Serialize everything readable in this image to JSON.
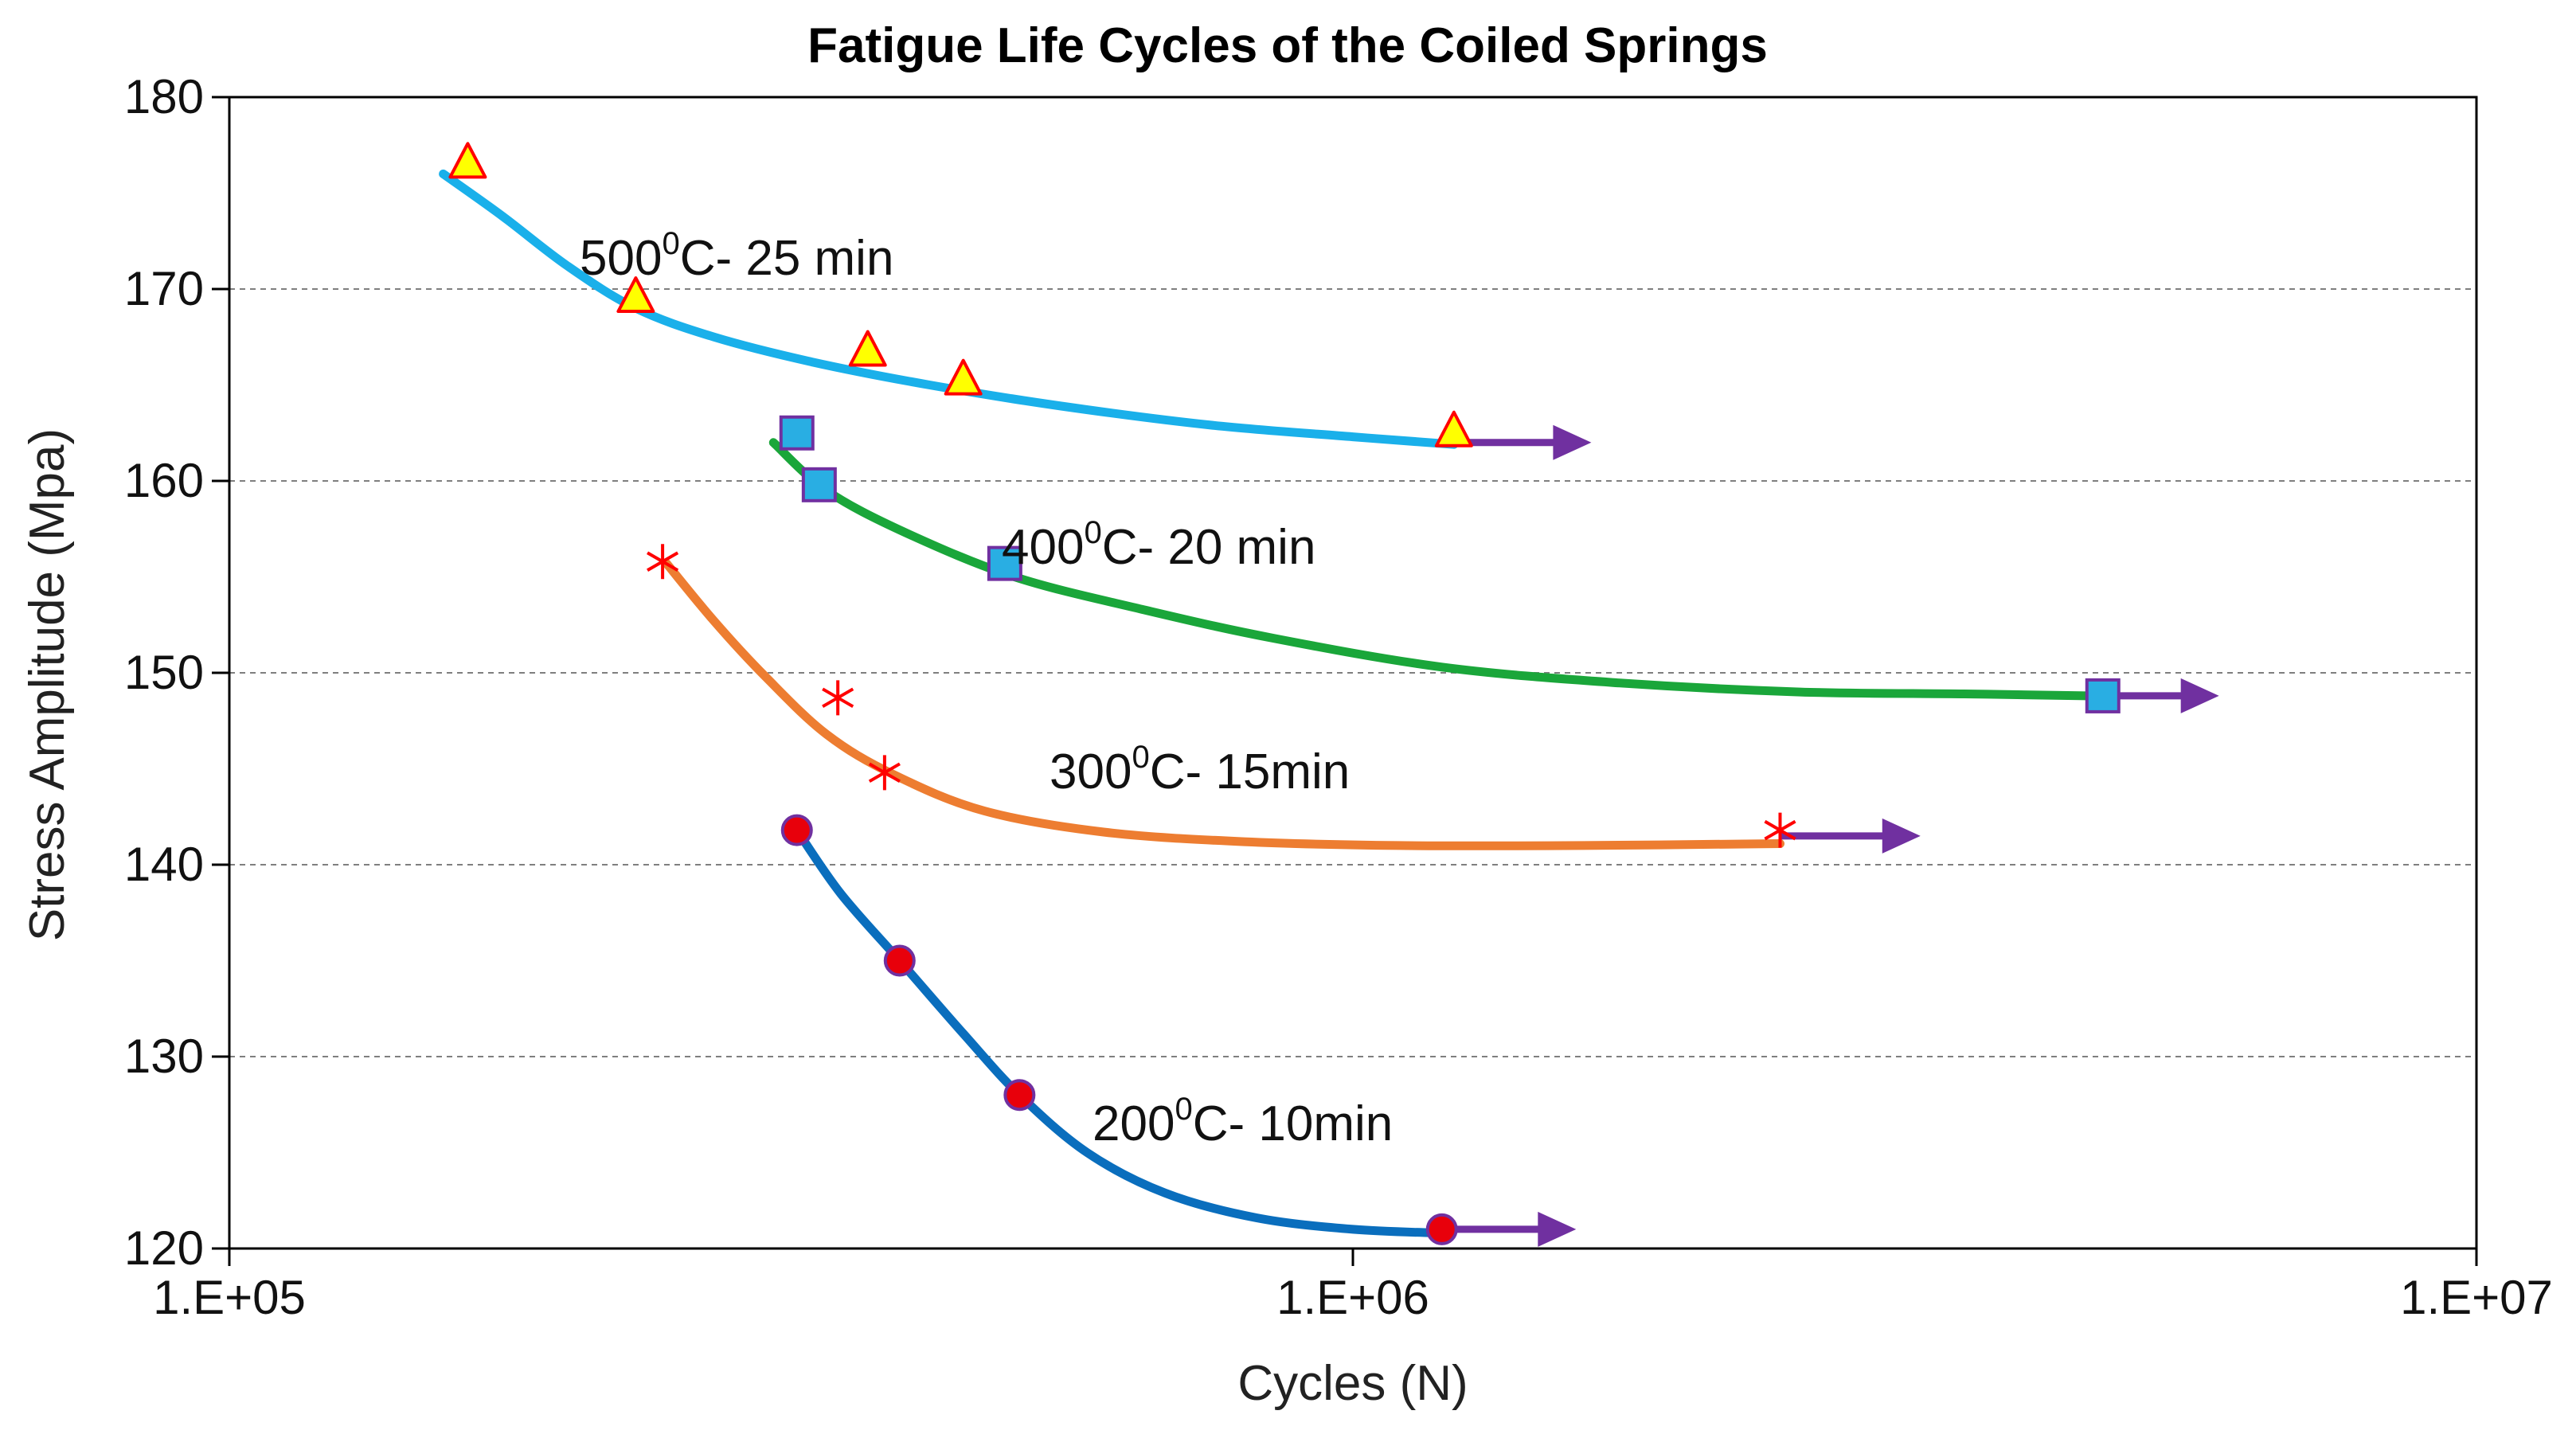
{
  "chart_data": {
    "type": "scatter",
    "title": "Fatigue Life Cycles of the Coiled Springs",
    "xlabel": "Cycles (N)",
    "ylabel": "Stress Amplitude (Mpa)",
    "xscale": "log",
    "xlim": [
      100000,
      10000000
    ],
    "ylim": [
      120,
      180
    ],
    "xticks": [
      100000,
      1000000,
      10000000
    ],
    "xtick_labels": [
      "1.E+05",
      "1.E+06",
      "1.E+07"
    ],
    "yticks": [
      120,
      130,
      140,
      150,
      160,
      170,
      180
    ],
    "ytick_labels": [
      "120",
      "130",
      "140",
      "150",
      "160",
      "170",
      "180"
    ],
    "grid": "horizontal dashed",
    "colors": {
      "title": "#ff0000",
      "runout_arrow": "#7030a0",
      "gridline": "#7f7f7f",
      "axis": "#000000"
    },
    "series": [
      {
        "name": "500°C- 25 min",
        "label_main": "500",
        "label_sup": "0",
        "label_rest": "C- 25 min",
        "marker": "triangle",
        "marker_fill": "#ffff00",
        "marker_edge": "#ff0000",
        "line_color": "#1ab0ea",
        "x": [
          163000,
          230000,
          370000,
          450000,
          1230000
        ],
        "y": [
          176.5,
          169.5,
          166.7,
          165.2,
          162.5
        ],
        "fit_x": [
          155000,
          175000,
          200000,
          230000,
          270000,
          330000,
          420000,
          550000,
          750000,
          1000000,
          1230000
        ],
        "fit_y": [
          176.0,
          173.8,
          171.2,
          169.0,
          167.5,
          166.2,
          165.0,
          163.9,
          162.9,
          162.3,
          161.9
        ],
        "runout_x": 1230000,
        "runout_y": 162.0,
        "runout_end_x": 1630000
      },
      {
        "name": "400°C- 20 min",
        "label_main": "400",
        "label_sup": "0",
        "label_rest": "C- 20 min",
        "marker": "square",
        "marker_fill": "#29aee3",
        "marker_edge": "#7030a0",
        "line_color": "#1aa63a",
        "x": [
          320000,
          335000,
          490000,
          4650000
        ],
        "y": [
          162.5,
          159.8,
          155.7,
          148.8
        ],
        "fit_x": [
          305000,
          340000,
          400000,
          500000,
          650000,
          850000,
          1200000,
          1700000,
          2500000,
          3500000,
          4500000
        ],
        "fit_y": [
          162.0,
          159.5,
          157.3,
          155.0,
          153.3,
          151.8,
          150.3,
          149.5,
          149.0,
          148.9,
          148.8
        ],
        "runout_x": 4650000,
        "runout_y": 148.8,
        "runout_end_x": 5900000
      },
      {
        "name": "300°C- 15min",
        "label_main": "300",
        "label_sup": "0",
        "label_rest": "C- 15min",
        "marker": "asterisk",
        "marker_fill": "#ff0000",
        "marker_edge": "#ff0000",
        "line_color": "#ed7d31",
        "x": [
          243000,
          348000,
          383000,
          2400000
        ],
        "y": [
          155.8,
          148.7,
          144.8,
          141.8
        ],
        "fit_x": [
          245000,
          270000,
          300000,
          340000,
          390000,
          470000,
          600000,
          800000,
          1100000,
          1600000,
          2400000
        ],
        "fit_y": [
          155.7,
          152.7,
          149.8,
          146.8,
          144.7,
          142.8,
          141.7,
          141.2,
          141.0,
          141.0,
          141.1
        ],
        "runout_x": 2400000,
        "runout_y": 141.5,
        "runout_end_x": 3200000
      },
      {
        "name": "200°C- 10min",
        "label_main": "200",
        "label_sup": "0",
        "label_rest": "C- 10min",
        "marker": "circle",
        "marker_fill": "#e8000b",
        "marker_edge": "#7030a0",
        "line_color": "#0a6ebd",
        "x": [
          320000,
          395000,
          505000,
          1200000
        ],
        "y": [
          141.8,
          135.0,
          128.0,
          121.0
        ],
        "fit_x": [
          320000,
          350000,
          395000,
          450000,
          505000,
          580000,
          680000,
          820000,
          1000000,
          1200000
        ],
        "fit_y": [
          141.8,
          138.5,
          135.0,
          131.2,
          128.0,
          125.0,
          122.9,
          121.6,
          121.0,
          120.8
        ],
        "runout_x": 1200000,
        "runout_y": 121.0,
        "runout_end_x": 1580000
      }
    ]
  }
}
